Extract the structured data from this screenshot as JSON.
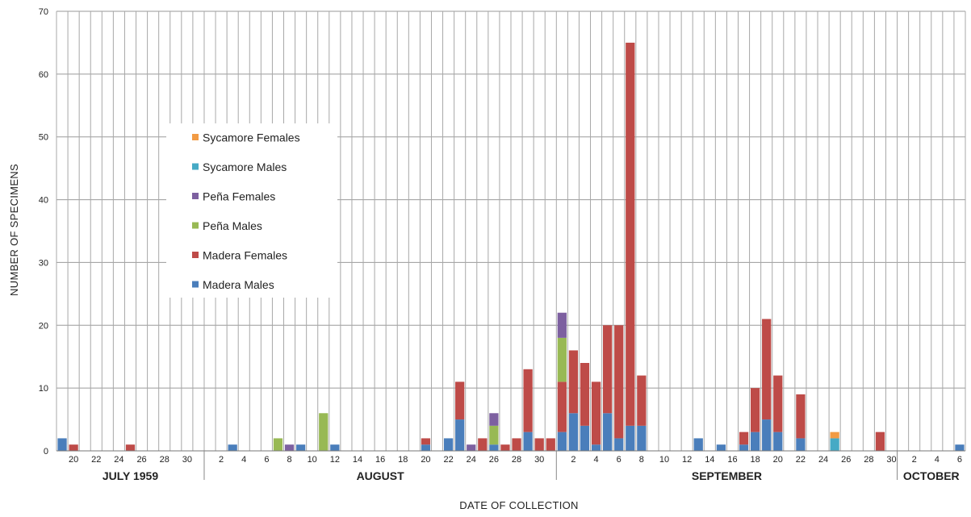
{
  "chart_data": {
    "type": "bar",
    "stacked": true,
    "xlabel": "DATE OF COLLECTION",
    "ylabel": "NUMBER OF SPECIMENS",
    "ylim": [
      0,
      70
    ],
    "yticks": [
      0,
      10,
      20,
      30,
      40,
      50,
      60,
      70
    ],
    "grid": true,
    "legend_position": "upper-left",
    "colors": {
      "Madera Males": "#4a7ebb",
      "Madera Females": "#be4b48",
      "Peña Males": "#98b954",
      "Peña Females": "#7d60a0",
      "Sycamore Males": "#46aac5",
      "Sycamore Females": "#f29b44"
    },
    "legend": [
      "Sycamore Females",
      "Sycamore Males",
      "Peña Females",
      "Peña Males",
      "Madera Females",
      "Madera Males"
    ],
    "months": [
      {
        "label": "JULY 1959",
        "start": "1959-07-19",
        "end": "1959-07-31"
      },
      {
        "label": "AUGUST",
        "start": "1959-08-01",
        "end": "1959-08-31"
      },
      {
        "label": "SEPTEMBER",
        "start": "1959-09-01",
        "end": "1959-09-30"
      },
      {
        "label": "OCTOBER",
        "start": "1959-10-01",
        "end": "1959-10-06"
      }
    ],
    "x": [
      "1959-07-19",
      "1959-07-20",
      "1959-07-21",
      "1959-07-22",
      "1959-07-23",
      "1959-07-24",
      "1959-07-25",
      "1959-07-26",
      "1959-07-27",
      "1959-07-28",
      "1959-07-29",
      "1959-07-30",
      "1959-07-31",
      "1959-08-01",
      "1959-08-02",
      "1959-08-03",
      "1959-08-04",
      "1959-08-05",
      "1959-08-06",
      "1959-08-07",
      "1959-08-08",
      "1959-08-09",
      "1959-08-10",
      "1959-08-11",
      "1959-08-12",
      "1959-08-13",
      "1959-08-14",
      "1959-08-15",
      "1959-08-16",
      "1959-08-17",
      "1959-08-18",
      "1959-08-19",
      "1959-08-20",
      "1959-08-21",
      "1959-08-22",
      "1959-08-23",
      "1959-08-24",
      "1959-08-25",
      "1959-08-26",
      "1959-08-27",
      "1959-08-28",
      "1959-08-29",
      "1959-08-30",
      "1959-08-31",
      "1959-09-01",
      "1959-09-02",
      "1959-09-03",
      "1959-09-04",
      "1959-09-05",
      "1959-09-06",
      "1959-09-07",
      "1959-09-08",
      "1959-09-09",
      "1959-09-10",
      "1959-09-11",
      "1959-09-12",
      "1959-09-13",
      "1959-09-14",
      "1959-09-15",
      "1959-09-16",
      "1959-09-17",
      "1959-09-18",
      "1959-09-19",
      "1959-09-20",
      "1959-09-21",
      "1959-09-22",
      "1959-09-23",
      "1959-09-24",
      "1959-09-25",
      "1959-09-26",
      "1959-09-27",
      "1959-09-28",
      "1959-09-29",
      "1959-09-30",
      "1959-10-01",
      "1959-10-02",
      "1959-10-03",
      "1959-10-04",
      "1959-10-05",
      "1959-10-06"
    ],
    "tick_labels": [
      null,
      "20",
      null,
      "22",
      null,
      "24",
      null,
      "26",
      null,
      "28",
      null,
      "30",
      null,
      null,
      "2",
      null,
      "4",
      null,
      "6",
      null,
      "8",
      null,
      "10",
      null,
      "12",
      null,
      "14",
      null,
      "16",
      null,
      "18",
      null,
      "20",
      null,
      "22",
      null,
      "24",
      null,
      "26",
      null,
      "28",
      null,
      "30",
      null,
      null,
      "2",
      null,
      "4",
      null,
      "6",
      null,
      "8",
      null,
      "10",
      null,
      "12",
      null,
      "14",
      null,
      "16",
      null,
      "18",
      null,
      "20",
      null,
      "22",
      null,
      "24",
      null,
      "26",
      null,
      "28",
      null,
      "30",
      null,
      "2",
      null,
      "4",
      null,
      "6"
    ],
    "series": [
      {
        "name": "Madera Males",
        "values": [
          2,
          0,
          0,
          0,
          0,
          0,
          0,
          0,
          0,
          0,
          0,
          0,
          0,
          0,
          0,
          1,
          0,
          0,
          0,
          0,
          0,
          1,
          0,
          0,
          1,
          0,
          0,
          0,
          0,
          0,
          0,
          0,
          1,
          0,
          2,
          5,
          0,
          0,
          1,
          0,
          0,
          3,
          0,
          0,
          3,
          6,
          4,
          1,
          6,
          2,
          4,
          4,
          0,
          0,
          0,
          0,
          2,
          0,
          1,
          0,
          1,
          3,
          5,
          3,
          0,
          2,
          0,
          0,
          0,
          0,
          0,
          0,
          0,
          0,
          0,
          0,
          0,
          0,
          0,
          1
        ]
      },
      {
        "name": "Madera Females",
        "values": [
          0,
          1,
          0,
          0,
          0,
          0,
          1,
          0,
          0,
          0,
          0,
          0,
          0,
          0,
          0,
          0,
          0,
          0,
          0,
          0,
          0,
          0,
          0,
          0,
          0,
          0,
          0,
          0,
          0,
          0,
          0,
          0,
          1,
          0,
          0,
          6,
          0,
          2,
          0,
          1,
          2,
          10,
          2,
          2,
          8,
          10,
          10,
          10,
          14,
          18,
          61,
          8,
          0,
          0,
          0,
          0,
          0,
          0,
          0,
          0,
          2,
          7,
          16,
          9,
          0,
          7,
          0,
          0,
          0,
          0,
          0,
          0,
          3,
          0,
          0,
          0,
          0,
          0,
          0,
          0
        ]
      },
      {
        "name": "Peña Males",
        "values": [
          0,
          0,
          0,
          0,
          0,
          0,
          0,
          0,
          0,
          0,
          0,
          0,
          0,
          0,
          0,
          0,
          0,
          0,
          0,
          2,
          0,
          0,
          0,
          6,
          0,
          0,
          0,
          0,
          0,
          0,
          0,
          0,
          0,
          0,
          0,
          0,
          0,
          0,
          3,
          0,
          0,
          0,
          0,
          0,
          7,
          0,
          0,
          0,
          0,
          0,
          0,
          0,
          0,
          0,
          0,
          0,
          0,
          0,
          0,
          0,
          0,
          0,
          0,
          0,
          0,
          0,
          0,
          0,
          0,
          0,
          0,
          0,
          0,
          0,
          0,
          0,
          0,
          0,
          0,
          0
        ]
      },
      {
        "name": "Peña Females",
        "values": [
          0,
          0,
          0,
          0,
          0,
          0,
          0,
          0,
          0,
          0,
          0,
          0,
          0,
          0,
          0,
          0,
          0,
          0,
          0,
          0,
          1,
          0,
          0,
          0,
          0,
          0,
          0,
          0,
          0,
          0,
          0,
          0,
          0,
          0,
          0,
          0,
          1,
          0,
          2,
          0,
          0,
          0,
          0,
          0,
          4,
          0,
          0,
          0,
          0,
          0,
          0,
          0,
          0,
          0,
          0,
          0,
          0,
          0,
          0,
          0,
          0,
          0,
          0,
          0,
          0,
          0,
          0,
          0,
          0,
          0,
          0,
          0,
          0,
          0,
          0,
          0,
          0,
          0,
          0,
          0
        ]
      },
      {
        "name": "Sycamore Males",
        "values": [
          0,
          0,
          0,
          0,
          0,
          0,
          0,
          0,
          0,
          0,
          0,
          0,
          0,
          0,
          0,
          0,
          0,
          0,
          0,
          0,
          0,
          0,
          0,
          0,
          0,
          0,
          0,
          0,
          0,
          0,
          0,
          0,
          0,
          0,
          0,
          0,
          0,
          0,
          0,
          0,
          0,
          0,
          0,
          0,
          0,
          0,
          0,
          0,
          0,
          0,
          0,
          0,
          0,
          0,
          0,
          0,
          0,
          0,
          0,
          0,
          0,
          0,
          0,
          0,
          0,
          0,
          0,
          0,
          2,
          0,
          0,
          0,
          0,
          0,
          0,
          0,
          0,
          0,
          0,
          0
        ]
      },
      {
        "name": "Sycamore Females",
        "values": [
          0,
          0,
          0,
          0,
          0,
          0,
          0,
          0,
          0,
          0,
          0,
          0,
          0,
          0,
          0,
          0,
          0,
          0,
          0,
          0,
          0,
          0,
          0,
          0,
          0,
          0,
          0,
          0,
          0,
          0,
          0,
          0,
          0,
          0,
          0,
          0,
          0,
          0,
          0,
          0,
          0,
          0,
          0,
          0,
          0,
          0,
          0,
          0,
          0,
          0,
          0,
          0,
          0,
          0,
          0,
          0,
          0,
          0,
          0,
          0,
          0,
          0,
          0,
          0,
          0,
          0,
          0,
          0,
          1,
          0,
          0,
          0,
          0,
          0,
          0,
          0,
          0,
          0,
          0,
          0
        ]
      }
    ]
  }
}
